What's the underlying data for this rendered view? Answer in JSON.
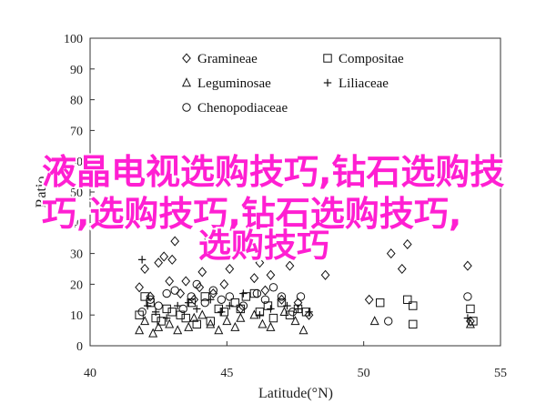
{
  "chart_data": {
    "type": "scatter",
    "xlabel": "Latitude(°N)",
    "ylabel": "Ratio",
    "xlim": [
      40,
      55
    ],
    "ylim": [
      0,
      100
    ],
    "xticks": [
      "40",
      "45",
      "50",
      "55"
    ],
    "yticks": [
      "0",
      "10",
      "20",
      "30",
      "40",
      "50",
      "60",
      "70",
      "80",
      "90",
      "100"
    ],
    "grid": false,
    "legend_position": "top-center",
    "series": [
      {
        "name": "Gramineae",
        "marker": "diamond",
        "points": [
          [
            41.8,
            19
          ],
          [
            42.0,
            25
          ],
          [
            42.2,
            16
          ],
          [
            42.5,
            27
          ],
          [
            42.7,
            29
          ],
          [
            42.9,
            21
          ],
          [
            43.0,
            28
          ],
          [
            43.1,
            34
          ],
          [
            43.3,
            17
          ],
          [
            43.5,
            21
          ],
          [
            43.8,
            15
          ],
          [
            44.0,
            19
          ],
          [
            44.1,
            24
          ],
          [
            44.3,
            35
          ],
          [
            44.5,
            17
          ],
          [
            44.9,
            20
          ],
          [
            45.1,
            25
          ],
          [
            45.3,
            31
          ],
          [
            45.5,
            12
          ],
          [
            46.0,
            22
          ],
          [
            46.2,
            27
          ],
          [
            46.4,
            18
          ],
          [
            46.6,
            23
          ],
          [
            47.0,
            15
          ],
          [
            47.3,
            26
          ],
          [
            47.6,
            14
          ],
          [
            48.0,
            10
          ],
          [
            48.6,
            23
          ],
          [
            50.2,
            15
          ],
          [
            51.0,
            30
          ],
          [
            51.4,
            25
          ],
          [
            51.6,
            33
          ],
          [
            53.8,
            26
          ],
          [
            53.9,
            8
          ]
        ]
      },
      {
        "name": "Compositae",
        "marker": "square",
        "points": [
          [
            41.8,
            10
          ],
          [
            42.0,
            16
          ],
          [
            42.2,
            14
          ],
          [
            42.4,
            9
          ],
          [
            42.6,
            8
          ],
          [
            42.8,
            12
          ],
          [
            43.0,
            11
          ],
          [
            43.3,
            10
          ],
          [
            43.5,
            9
          ],
          [
            43.7,
            14
          ],
          [
            43.9,
            7
          ],
          [
            44.2,
            16
          ],
          [
            44.4,
            8
          ],
          [
            44.7,
            12
          ],
          [
            44.9,
            11
          ],
          [
            45.3,
            14
          ],
          [
            45.5,
            12
          ],
          [
            45.7,
            16
          ],
          [
            46.0,
            17
          ],
          [
            46.2,
            11
          ],
          [
            46.5,
            13
          ],
          [
            46.7,
            9
          ],
          [
            47.0,
            14
          ],
          [
            47.3,
            10
          ],
          [
            47.6,
            12
          ],
          [
            47.9,
            11
          ],
          [
            50.6,
            14
          ],
          [
            51.6,
            15
          ],
          [
            51.8,
            13
          ],
          [
            51.8,
            7
          ],
          [
            53.9,
            12
          ],
          [
            54.0,
            8
          ]
        ]
      },
      {
        "name": "Leguminosae",
        "marker": "triangle",
        "points": [
          [
            41.8,
            5
          ],
          [
            42.0,
            8
          ],
          [
            42.3,
            4
          ],
          [
            42.5,
            6
          ],
          [
            42.9,
            7
          ],
          [
            43.2,
            5
          ],
          [
            43.6,
            6
          ],
          [
            43.8,
            9
          ],
          [
            44.1,
            10
          ],
          [
            44.4,
            7
          ],
          [
            44.7,
            5
          ],
          [
            45.0,
            8
          ],
          [
            45.3,
            6
          ],
          [
            45.5,
            9
          ],
          [
            46.0,
            10
          ],
          [
            46.3,
            7
          ],
          [
            46.6,
            6
          ],
          [
            47.1,
            11
          ],
          [
            47.5,
            8
          ],
          [
            47.8,
            5
          ],
          [
            50.4,
            8
          ],
          [
            53.9,
            7
          ]
        ]
      },
      {
        "name": "Liliaceae",
        "marker": "plus",
        "points": [
          [
            41.9,
            28
          ],
          [
            42.1,
            13
          ],
          [
            42.4,
            11
          ],
          [
            42.8,
            9
          ],
          [
            43.2,
            13
          ],
          [
            43.6,
            14
          ],
          [
            43.9,
            12
          ],
          [
            44.4,
            15
          ],
          [
            44.8,
            11
          ],
          [
            45.1,
            13
          ],
          [
            45.6,
            17
          ],
          [
            46.2,
            10
          ],
          [
            46.6,
            12
          ],
          [
            47.2,
            13
          ],
          [
            47.6,
            12
          ],
          [
            48.0,
            11
          ],
          [
            53.8,
            9
          ]
        ]
      },
      {
        "name": "Chenopodiaceae",
        "marker": "circle",
        "points": [
          [
            41.9,
            11
          ],
          [
            42.2,
            15
          ],
          [
            42.5,
            13
          ],
          [
            42.8,
            17
          ],
          [
            43.1,
            18
          ],
          [
            43.4,
            12
          ],
          [
            43.7,
            16
          ],
          [
            43.9,
            20
          ],
          [
            44.2,
            14
          ],
          [
            44.5,
            18
          ],
          [
            44.8,
            15
          ],
          [
            45.1,
            16
          ],
          [
            45.6,
            13
          ],
          [
            46.1,
            17
          ],
          [
            46.4,
            15
          ],
          [
            46.7,
            19
          ],
          [
            47.0,
            16
          ],
          [
            47.4,
            11
          ],
          [
            47.7,
            16
          ],
          [
            50.9,
            8
          ],
          [
            53.8,
            16
          ]
        ]
      }
    ]
  },
  "overlay": {
    "line1": "液晶电视选购技巧,钻石选购技",
    "line2": "巧,选购技巧,钻石选购技巧,",
    "line3": "选购技巧"
  }
}
